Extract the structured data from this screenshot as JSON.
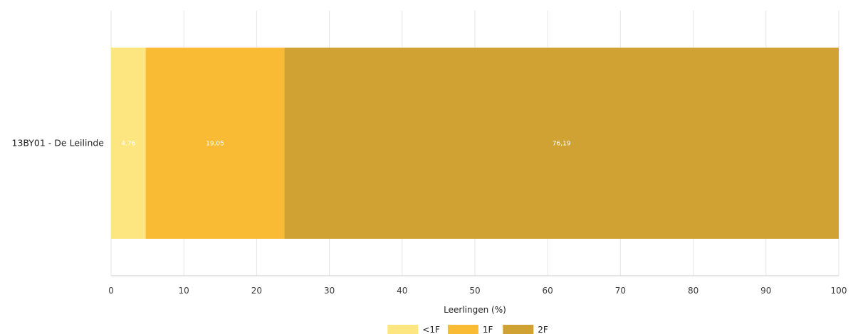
{
  "chart_data": {
    "type": "bar",
    "orientation": "horizontal",
    "stacked": true,
    "categories": [
      "13BY01 - De Leilinde"
    ],
    "series": [
      {
        "name": "<1F",
        "values": [
          4.76
        ],
        "label": "4,76",
        "color": "#fde680"
      },
      {
        "name": "1F",
        "values": [
          19.05
        ],
        "label": "19,05",
        "color": "#f8bb33"
      },
      {
        "name": "2F",
        "values": [
          76.19
        ],
        "label": "76,19",
        "color": "#cfa233"
      }
    ],
    "xlabel": "Leerlingen (%)",
    "ylabel": "",
    "xlim": [
      0,
      100
    ],
    "xticks": [
      0,
      10,
      20,
      30,
      40,
      50,
      60,
      70,
      80,
      90,
      100
    ],
    "grid": true,
    "gridColor": "#e6e6e6",
    "legend": "bottom-center"
  }
}
